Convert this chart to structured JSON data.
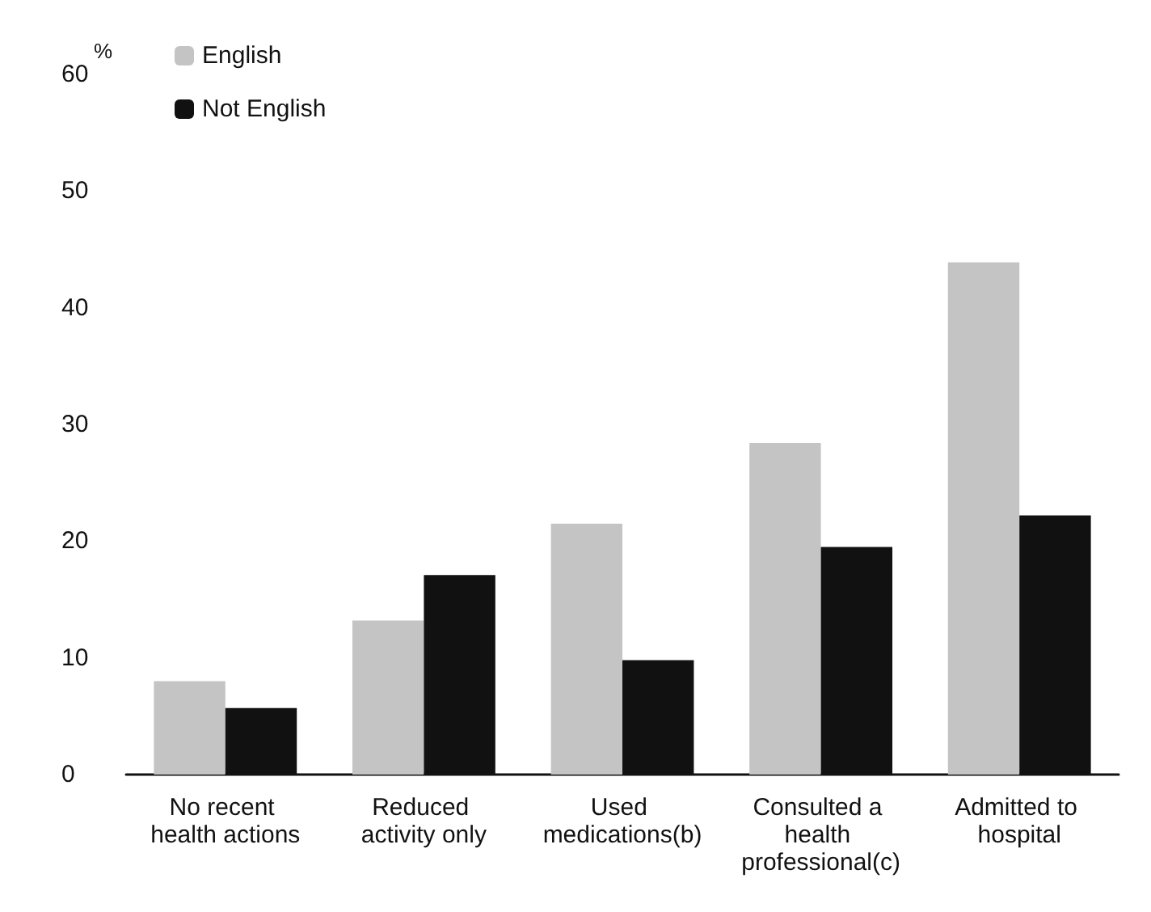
{
  "chart_data": {
    "type": "bar",
    "ylabel": "%",
    "categories": [
      "No recent health actions",
      "Reduced activity only",
      "Used medications(b)",
      "Consulted a health professional(c)",
      "Admitted to hospital"
    ],
    "series": [
      {
        "name": "English",
        "color": "#c4c4c4",
        "values": [
          8.0,
          13.2,
          21.5,
          28.4,
          43.9
        ]
      },
      {
        "name": "Not English",
        "color": "#111111",
        "values": [
          5.7,
          17.1,
          9.8,
          19.5,
          22.2
        ]
      }
    ],
    "ylim": [
      0,
      60
    ],
    "yticks": [
      0,
      10,
      20,
      30,
      40,
      50,
      60
    ],
    "grid": false,
    "legend": "top left"
  }
}
